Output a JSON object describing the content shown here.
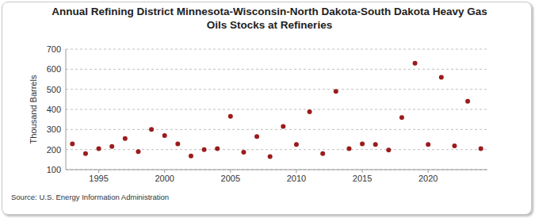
{
  "chart_data": {
    "type": "scatter",
    "title": "Annual Refining District Minnesota-Wisconsin-North Dakota-South Dakota Heavy Gas Oils Stocks at Refineries",
    "y_label": "Thousand Barrels",
    "source": "Source: U.S. Energy Information Administration",
    "x": [
      1993,
      1994,
      1995,
      1996,
      1997,
      1998,
      1999,
      2000,
      2001,
      2002,
      2003,
      2004,
      2005,
      2006,
      2007,
      2008,
      2009,
      2010,
      2011,
      2012,
      2013,
      2014,
      2015,
      2016,
      2017,
      2018,
      2019,
      2020,
      2021,
      2022,
      2023,
      2024
    ],
    "values": [
      228,
      180,
      205,
      215,
      255,
      190,
      300,
      270,
      228,
      168,
      200,
      205,
      365,
      187,
      265,
      165,
      315,
      225,
      388,
      180,
      490,
      205,
      228,
      225,
      198,
      360,
      630,
      225,
      560,
      218,
      440,
      205
    ],
    "color": "#9b1c1c",
    "marker": "circle",
    "xlim": [
      1992.5,
      2024.5
    ],
    "xticks": [
      1995,
      2000,
      2005,
      2010,
      2015,
      2020
    ],
    "ylim": [
      100,
      700
    ],
    "yticks": [
      100,
      200,
      300,
      400,
      500,
      600,
      700
    ],
    "grid": true
  }
}
